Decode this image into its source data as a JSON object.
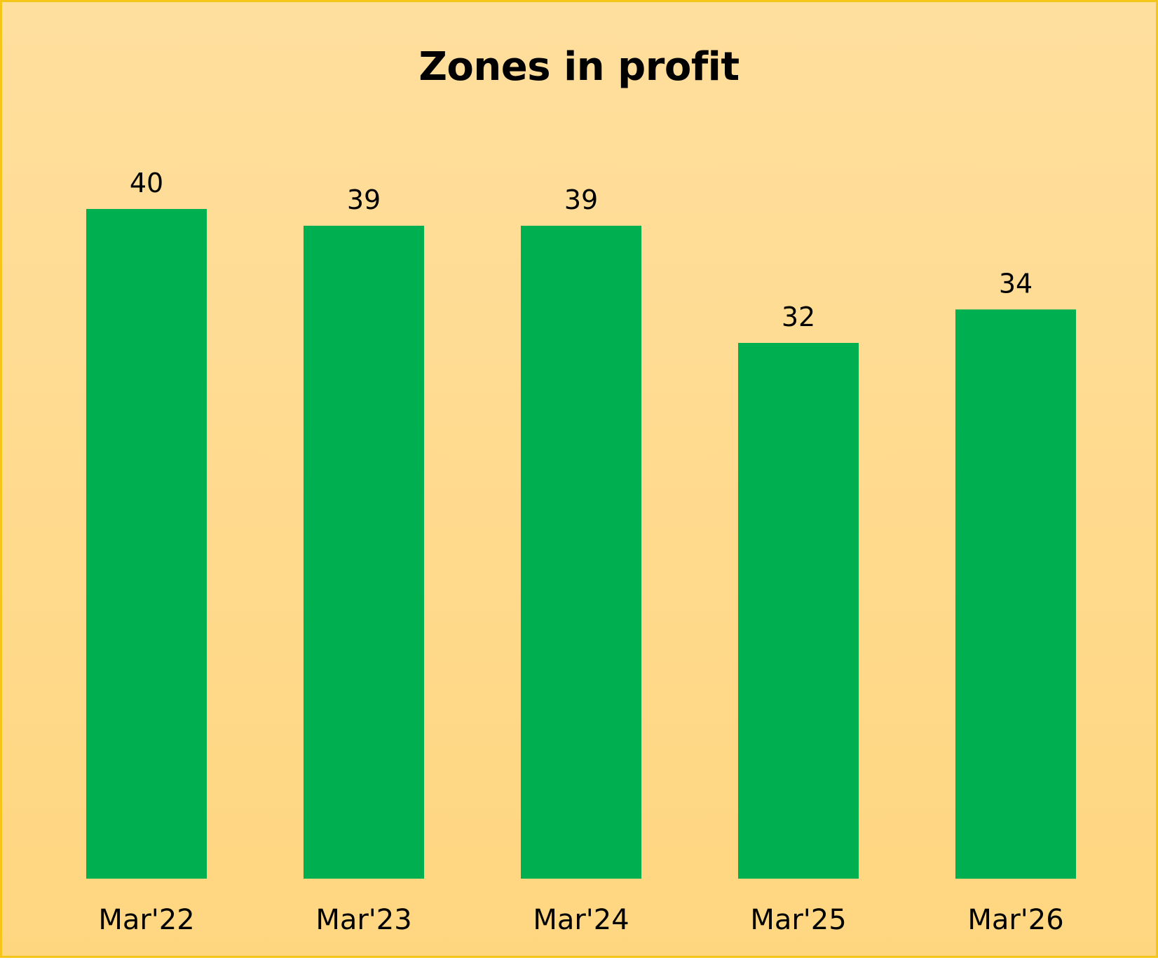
{
  "chart_data": {
    "type": "bar",
    "title": "Zones in profit",
    "xlabel": "",
    "ylabel": "",
    "categories": [
      "Mar'22",
      "Mar'23",
      "Mar'24",
      "Mar'25",
      "Mar'26"
    ],
    "values": [
      40,
      39,
      39,
      32,
      34
    ],
    "ylim": [
      0,
      40
    ],
    "grid": false,
    "data_labels": true,
    "colors": {
      "bar": "#00b050",
      "border": "#f5c518",
      "background_top": "#ffdf9e",
      "background_bottom": "#ffd680"
    }
  }
}
